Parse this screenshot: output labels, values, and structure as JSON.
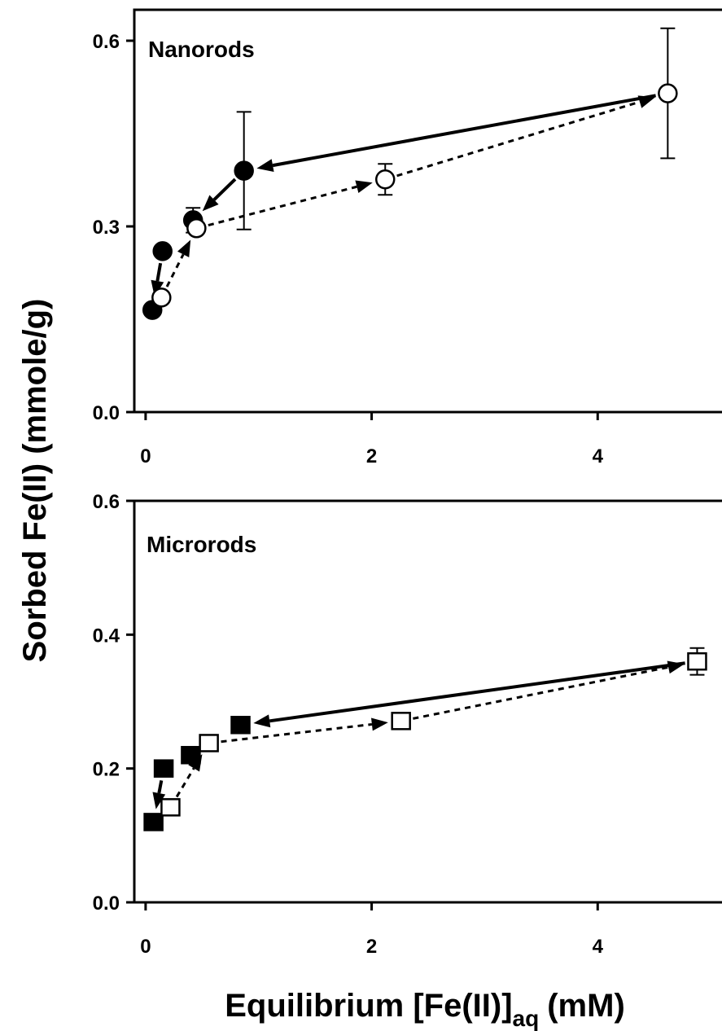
{
  "figure": {
    "ylabel": "Sorbed Fe(II) (mmole/g)",
    "xlabel_main": "Equilibrium [Fe(II)]",
    "xlabel_sub": "aq",
    "xlabel_unit": "(mM)"
  },
  "chart_data": [
    {
      "type": "scatter",
      "panel": "Nanorods",
      "xlim": [
        -0.1,
        5.1
      ],
      "ylim": [
        0.0,
        0.65
      ],
      "xticks": [
        "0",
        "2",
        "4"
      ],
      "yticks": [
        "0.0",
        "0.3",
        "0.6"
      ],
      "grid": false,
      "series": [
        {
          "marker": "circle-filled",
          "line": "solid",
          "points": [
            {
              "x": 0.87,
              "y": 0.39,
              "err": 0.095
            },
            {
              "x": 0.42,
              "y": 0.31,
              "err": 0.02
            },
            {
              "x": 0.15,
              "y": 0.26,
              "err": 0
            },
            {
              "x": 0.06,
              "y": 0.165,
              "err": 0
            }
          ]
        },
        {
          "marker": "circle-open",
          "line": "dashed",
          "points": [
            {
              "x": 0.14,
              "y": 0.185,
              "err": 0
            },
            {
              "x": 0.45,
              "y": 0.297,
              "err": 0
            },
            {
              "x": 2.12,
              "y": 0.376,
              "err": 0.025
            },
            {
              "x": 4.62,
              "y": 0.515,
              "err": 0.105
            }
          ]
        }
      ],
      "arrows": [
        {
          "line": "solid",
          "from": [
            4.62,
            0.515
          ],
          "to": [
            0.87,
            0.39
          ]
        },
        {
          "line": "solid",
          "from": [
            0.87,
            0.39
          ],
          "to": [
            0.42,
            0.31
          ]
        },
        {
          "line": "solid",
          "from": [
            0.15,
            0.26
          ],
          "to": [
            0.06,
            0.165
          ]
        },
        {
          "line": "dashed",
          "from": [
            0.14,
            0.185
          ],
          "to": [
            0.45,
            0.297
          ]
        },
        {
          "line": "dashed",
          "from": [
            0.45,
            0.297
          ],
          "to": [
            2.12,
            0.376
          ]
        },
        {
          "line": "dashed",
          "from": [
            2.12,
            0.376
          ],
          "to": [
            4.62,
            0.515
          ]
        }
      ]
    },
    {
      "type": "scatter",
      "panel": "Microrods",
      "xlim": [
        -0.1,
        5.1
      ],
      "ylim": [
        0.0,
        0.6
      ],
      "xticks": [
        "0",
        "2",
        "4"
      ],
      "yticks": [
        "0.0",
        "0.2",
        "0.4",
        "0.6"
      ],
      "grid": false,
      "series": [
        {
          "marker": "square-filled",
          "line": "solid",
          "points": [
            {
              "x": 0.84,
              "y": 0.265,
              "err": 0
            },
            {
              "x": 0.4,
              "y": 0.22,
              "err": 0
            },
            {
              "x": 0.16,
              "y": 0.2,
              "err": 0
            },
            {
              "x": 0.07,
              "y": 0.12,
              "err": 0
            }
          ]
        },
        {
          "marker": "square-open",
          "line": "dashed",
          "points": [
            {
              "x": 0.22,
              "y": 0.142,
              "err": 0
            },
            {
              "x": 0.56,
              "y": 0.238,
              "err": 0
            },
            {
              "x": 2.26,
              "y": 0.271,
              "err": 0
            },
            {
              "x": 4.88,
              "y": 0.36,
              "err": 0.02
            }
          ]
        }
      ],
      "arrows": [
        {
          "line": "solid",
          "from": [
            4.88,
            0.36
          ],
          "to": [
            0.84,
            0.265
          ]
        },
        {
          "line": "solid",
          "from": [
            0.16,
            0.2
          ],
          "to": [
            0.07,
            0.12
          ]
        },
        {
          "line": "dashed",
          "from": [
            0.22,
            0.142
          ],
          "to": [
            0.56,
            0.238
          ]
        },
        {
          "line": "dashed",
          "from": [
            0.56,
            0.238
          ],
          "to": [
            2.26,
            0.271
          ]
        },
        {
          "line": "dashed",
          "from": [
            2.26,
            0.271
          ],
          "to": [
            4.88,
            0.36
          ]
        }
      ]
    }
  ]
}
